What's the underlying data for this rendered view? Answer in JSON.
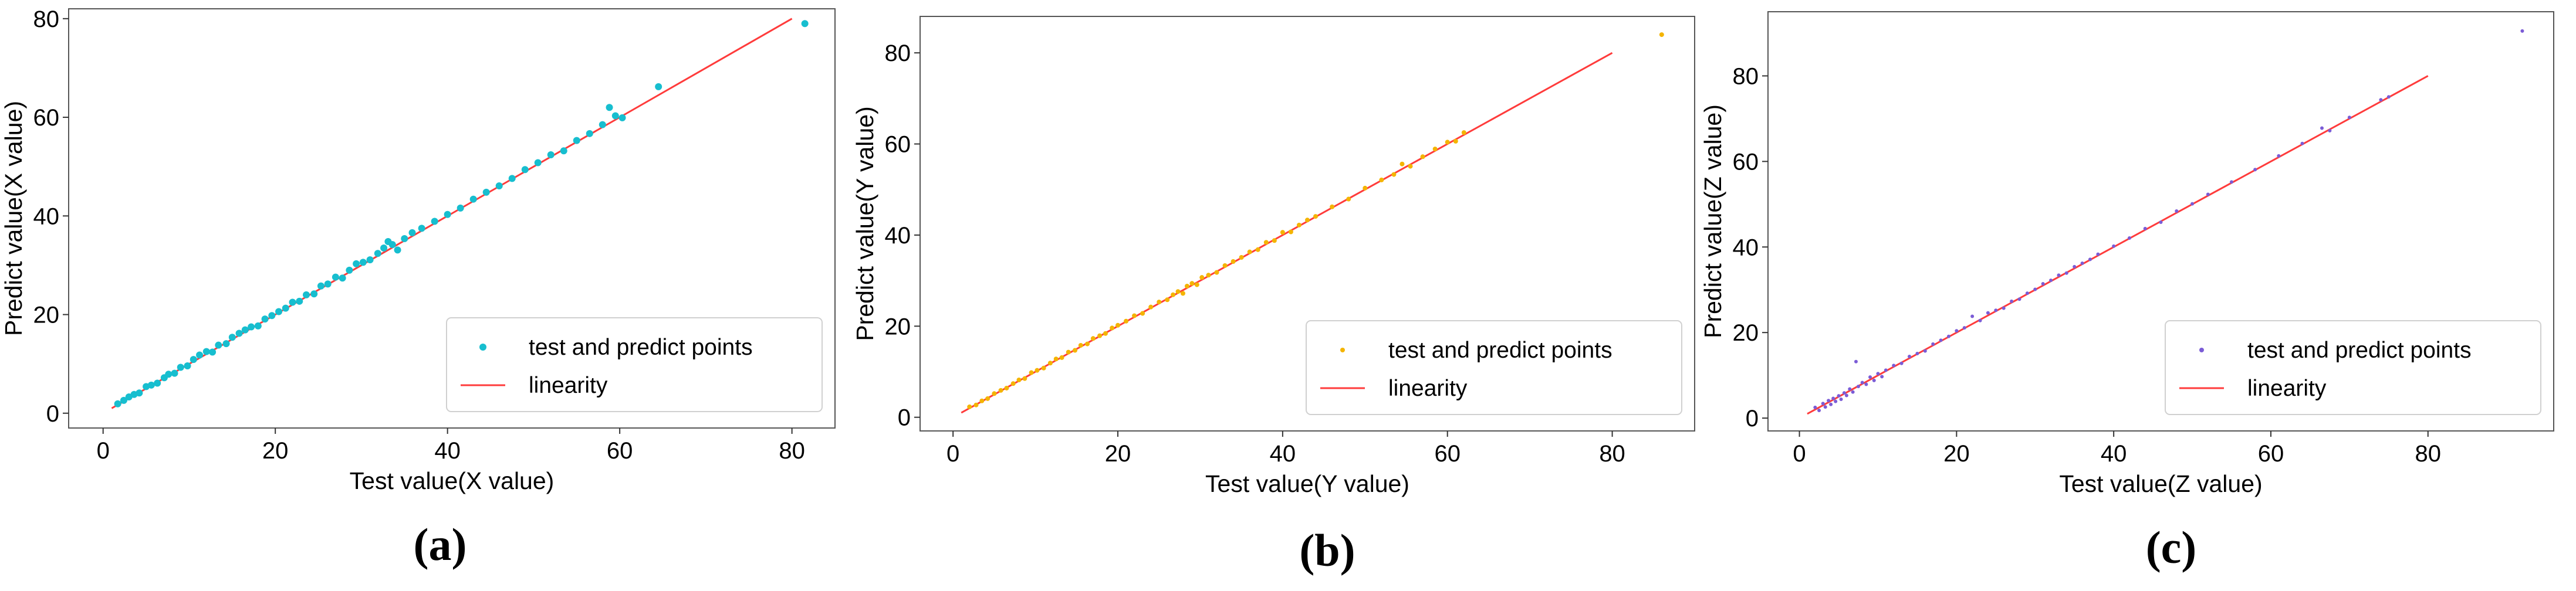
{
  "chart_data": [
    {
      "type": "scatter",
      "panel_label": "(a)",
      "xlabel": "Test value(X value)",
      "ylabel": "Predict value(X value)",
      "xlim": [
        -4,
        85
      ],
      "ylim": [
        -3,
        82
      ],
      "xticks": [
        0,
        20,
        40,
        60,
        80
      ],
      "yticks": [
        0,
        20,
        40,
        60,
        80
      ],
      "grid": false,
      "legend_position": "lower-right",
      "series": [
        {
          "name": "test and predict points",
          "kind": "scatter",
          "color": "#17becf",
          "marker_size": 6,
          "points": [
            [
              1.7,
              1.9
            ],
            [
              2.4,
              2.6
            ],
            [
              3,
              3.3
            ],
            [
              3.6,
              3.8
            ],
            [
              4.2,
              4.1
            ],
            [
              5,
              5.4
            ],
            [
              5.6,
              5.7
            ],
            [
              6.3,
              6.1
            ],
            [
              7.1,
              7.2
            ],
            [
              7.6,
              7.9
            ],
            [
              8.3,
              8.1
            ],
            [
              9,
              9.3
            ],
            [
              9.8,
              9.6
            ],
            [
              10.5,
              10.9
            ],
            [
              11.2,
              11.8
            ],
            [
              12,
              12.5
            ],
            [
              12.7,
              12.4
            ],
            [
              13.4,
              13.8
            ],
            [
              14.3,
              14.1
            ],
            [
              15,
              15.4
            ],
            [
              15.8,
              16.2
            ],
            [
              16.5,
              16.9
            ],
            [
              17.2,
              17.5
            ],
            [
              18,
              17.7
            ],
            [
              18.8,
              19.1
            ],
            [
              19.6,
              19.8
            ],
            [
              20.4,
              20.6
            ],
            [
              21.2,
              21.3
            ],
            [
              22,
              22.5
            ],
            [
              22.8,
              22.7
            ],
            [
              23.6,
              24
            ],
            [
              24.5,
              24.2
            ],
            [
              25.3,
              25.8
            ],
            [
              26.1,
              26.2
            ],
            [
              27,
              27.6
            ],
            [
              27.8,
              27.4
            ],
            [
              28.6,
              29
            ],
            [
              29.4,
              30.3
            ],
            [
              30.2,
              30.6
            ],
            [
              31,
              31.1
            ],
            [
              31.9,
              32.4
            ],
            [
              32.6,
              33.5
            ],
            [
              33.1,
              34.8
            ],
            [
              33.6,
              34.2
            ],
            [
              34.2,
              33.1
            ],
            [
              35,
              35.4
            ],
            [
              35.9,
              36.6
            ],
            [
              37,
              37.5
            ],
            [
              38.5,
              38.9
            ],
            [
              40,
              40.3
            ],
            [
              41.5,
              41.6
            ],
            [
              43,
              43.4
            ],
            [
              44.5,
              44.8
            ],
            [
              46,
              46.1
            ],
            [
              47.5,
              47.6
            ],
            [
              49,
              49.4
            ],
            [
              50.5,
              50.8
            ],
            [
              52,
              52.4
            ],
            [
              53.5,
              53.2
            ],
            [
              55,
              55.3
            ],
            [
              56.5,
              56.7
            ],
            [
              58,
              58.5
            ],
            [
              58.8,
              62
            ],
            [
              59.5,
              60.3
            ],
            [
              60.3,
              59.9
            ],
            [
              64.5,
              66.2
            ],
            [
              81.5,
              79
            ]
          ]
        },
        {
          "name": "linearity",
          "kind": "line",
          "color": "#ff3b3b",
          "points": [
            [
              1,
              1
            ],
            [
              80,
              80
            ]
          ]
        }
      ]
    },
    {
      "type": "scatter",
      "panel_label": "(b)",
      "xlabel": "Test value(Y value)",
      "ylabel": "Predict value(Y value)",
      "xlim": [
        -4,
        90
      ],
      "ylim": [
        -3,
        88
      ],
      "xticks": [
        0,
        20,
        40,
        60,
        80
      ],
      "yticks": [
        0,
        20,
        40,
        60,
        80
      ],
      "grid": false,
      "legend_position": "lower-right",
      "series": [
        {
          "name": "test and predict points",
          "kind": "scatter",
          "color": "#f4b400",
          "marker_size": 4,
          "points": [
            [
              2,
              2.3
            ],
            [
              2.8,
              2.7
            ],
            [
              3.5,
              3.6
            ],
            [
              4.2,
              4.1
            ],
            [
              5,
              5.2
            ],
            [
              5.8,
              5.9
            ],
            [
              6.5,
              6.4
            ],
            [
              7.3,
              7.4
            ],
            [
              8,
              8.2
            ],
            [
              8.7,
              8.5
            ],
            [
              9.5,
              9.8
            ],
            [
              10.2,
              10.3
            ],
            [
              11,
              10.8
            ],
            [
              11.8,
              11.9
            ],
            [
              12.5,
              12.8
            ],
            [
              13.2,
              13.1
            ],
            [
              14,
              14.3
            ],
            [
              14.8,
              14.7
            ],
            [
              15.5,
              15.8
            ],
            [
              16.3,
              16.1
            ],
            [
              17,
              17.3
            ],
            [
              17.8,
              17.9
            ],
            [
              18.5,
              18.4
            ],
            [
              19.3,
              19.6
            ],
            [
              20,
              20.2
            ],
            [
              21,
              21.1
            ],
            [
              22,
              22.3
            ],
            [
              23,
              22.8
            ],
            [
              24,
              24.2
            ],
            [
              25,
              25.3
            ],
            [
              26,
              25.8
            ],
            [
              26.7,
              26.9
            ],
            [
              27.3,
              27.6
            ],
            [
              27.9,
              27.2
            ],
            [
              28.4,
              28.8
            ],
            [
              29,
              29.4
            ],
            [
              29.6,
              29.1
            ],
            [
              30.2,
              30.7
            ],
            [
              31,
              31.2
            ],
            [
              32,
              31.8
            ],
            [
              33,
              33.3
            ],
            [
              34,
              34.2
            ],
            [
              35,
              35.1
            ],
            [
              36,
              36.3
            ],
            [
              37,
              36.8
            ],
            [
              38,
              38.4
            ],
            [
              39,
              38.8
            ],
            [
              40,
              40.6
            ],
            [
              41,
              40.7
            ],
            [
              42,
              42.2
            ],
            [
              43,
              43.3
            ],
            [
              44,
              44.1
            ],
            [
              46,
              46.2
            ],
            [
              48,
              47.9
            ],
            [
              50,
              50.3
            ],
            [
              52,
              52.1
            ],
            [
              53.5,
              53.3
            ],
            [
              54.5,
              55.6
            ],
            [
              55.5,
              55.1
            ],
            [
              57,
              57.2
            ],
            [
              58.5,
              58.9
            ],
            [
              60,
              60.4
            ],
            [
              61,
              60.6
            ],
            [
              62,
              62.5
            ],
            [
              86,
              84
            ]
          ]
        },
        {
          "name": "linearity",
          "kind": "line",
          "color": "#ff3b3b",
          "points": [
            [
              1,
              1
            ],
            [
              80,
              80
            ]
          ]
        }
      ]
    },
    {
      "type": "scatter",
      "panel_label": "(c)",
      "xlabel": "Test value(Z value)",
      "ylabel": "Predict value(Z value)",
      "xlim": [
        -4,
        96
      ],
      "ylim": [
        -3,
        95
      ],
      "xticks": [
        0,
        20,
        40,
        60,
        80
      ],
      "yticks": [
        0,
        20,
        40,
        60,
        80
      ],
      "grid": false,
      "legend_position": "lower-right",
      "series": [
        {
          "name": "test and predict points",
          "kind": "scatter",
          "color": "#7b5cd6",
          "marker_size": 3,
          "points": [
            [
              2,
              2.5
            ],
            [
              2.5,
              1.8
            ],
            [
              3,
              3.4
            ],
            [
              3.3,
              2.6
            ],
            [
              3.7,
              4.1
            ],
            [
              4,
              3.2
            ],
            [
              4.3,
              4.6
            ],
            [
              4.6,
              3.9
            ],
            [
              5,
              5.2
            ],
            [
              5.3,
              4.4
            ],
            [
              5.7,
              5.9
            ],
            [
              6,
              5.3
            ],
            [
              6.4,
              6.8
            ],
            [
              6.8,
              6.1
            ],
            [
              7.2,
              13.2
            ],
            [
              7.5,
              7.4
            ],
            [
              8,
              8.3
            ],
            [
              8.5,
              7.9
            ],
            [
              9,
              9.6
            ],
            [
              9.5,
              8.8
            ],
            [
              10,
              10.4
            ],
            [
              10.5,
              9.7
            ],
            [
              11,
              11.2
            ],
            [
              12,
              12.3
            ],
            [
              13,
              12.8
            ],
            [
              14,
              14.4
            ],
            [
              15,
              15.1
            ],
            [
              16,
              15.7
            ],
            [
              17,
              17.3
            ],
            [
              18,
              18.2
            ],
            [
              19,
              19.1
            ],
            [
              20,
              20.4
            ],
            [
              21,
              21.1
            ],
            [
              22,
              23.8
            ],
            [
              23,
              22.8
            ],
            [
              24,
              24.6
            ],
            [
              25,
              25.2
            ],
            [
              26,
              25.7
            ],
            [
              27,
              27.3
            ],
            [
              28,
              27.8
            ],
            [
              29,
              29.2
            ],
            [
              30,
              30.1
            ],
            [
              31,
              31.4
            ],
            [
              32,
              32.2
            ],
            [
              33,
              33.4
            ],
            [
              34,
              33.9
            ],
            [
              35,
              35.4
            ],
            [
              36,
              36.2
            ],
            [
              37,
              37.1
            ],
            [
              38,
              38.3
            ],
            [
              40,
              40.2
            ],
            [
              42,
              42.1
            ],
            [
              44,
              44.3
            ],
            [
              46,
              45.8
            ],
            [
              48,
              48.4
            ],
            [
              50,
              50.1
            ],
            [
              52,
              52.3
            ],
            [
              55,
              55.2
            ],
            [
              58,
              58.1
            ],
            [
              61,
              61.3
            ],
            [
              64,
              64.2
            ],
            [
              66.5,
              67.8
            ],
            [
              67.5,
              67.2
            ],
            [
              70,
              70.3
            ],
            [
              74,
              74.4
            ],
            [
              75,
              75.1
            ],
            [
              92,
              90.5
            ]
          ]
        },
        {
          "name": "linearity",
          "kind": "line",
          "color": "#ff3b3b",
          "points": [
            [
              1,
              1
            ],
            [
              80,
              80
            ]
          ]
        }
      ]
    }
  ]
}
